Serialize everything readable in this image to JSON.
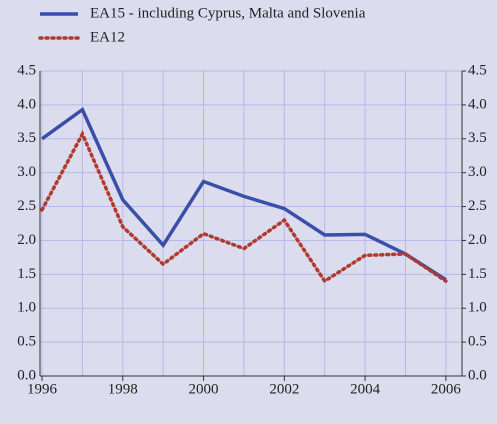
{
  "chart_data": {
    "type": "line",
    "x": [
      1996,
      1997,
      1998,
      1999,
      2000,
      2001,
      2002,
      2003,
      2004,
      2005,
      2006
    ],
    "series": [
      {
        "name": "EA15 - including Cyprus, Malta and Slovenia",
        "color": "#3a4fa8",
        "style": "solid",
        "values": [
          3.5,
          3.93,
          2.6,
          1.93,
          2.87,
          2.65,
          2.47,
          2.08,
          2.09,
          1.8,
          1.42
        ]
      },
      {
        "name": "EA12",
        "color": "#b03a2e",
        "style": "dotted",
        "values": [
          2.45,
          3.57,
          2.2,
          1.65,
          2.1,
          1.88,
          2.3,
          1.4,
          1.78,
          1.8,
          1.4
        ]
      }
    ],
    "xlim": [
      1995.95,
      2006.4
    ],
    "xticks": [
      1996,
      1998,
      2000,
      2002,
      2004,
      2006
    ],
    "ylim": [
      0,
      4.5
    ],
    "yticks": [
      {
        "value": 0,
        "label": "0.0"
      },
      0.5,
      {
        "value": 1,
        "label": "1.0"
      },
      1.5,
      {
        "value": 2,
        "label": "2.0"
      },
      2.5,
      {
        "value": 3,
        "label": "3.0"
      },
      3.5,
      {
        "value": 4,
        "label": "4.0"
      },
      4.5
    ],
    "y2lim": [
      0,
      4.5
    ],
    "y2ticks": [
      {
        "value": 0,
        "label": "0.0"
      },
      0.5,
      {
        "value": 1,
        "label": "1.0"
      },
      1.5,
      {
        "value": 2,
        "label": "2.0"
      },
      2.5,
      {
        "value": 3,
        "label": "3.0"
      },
      3.5,
      {
        "value": 4,
        "label": "4.0"
      },
      4.5
    ],
    "grid": true
  }
}
